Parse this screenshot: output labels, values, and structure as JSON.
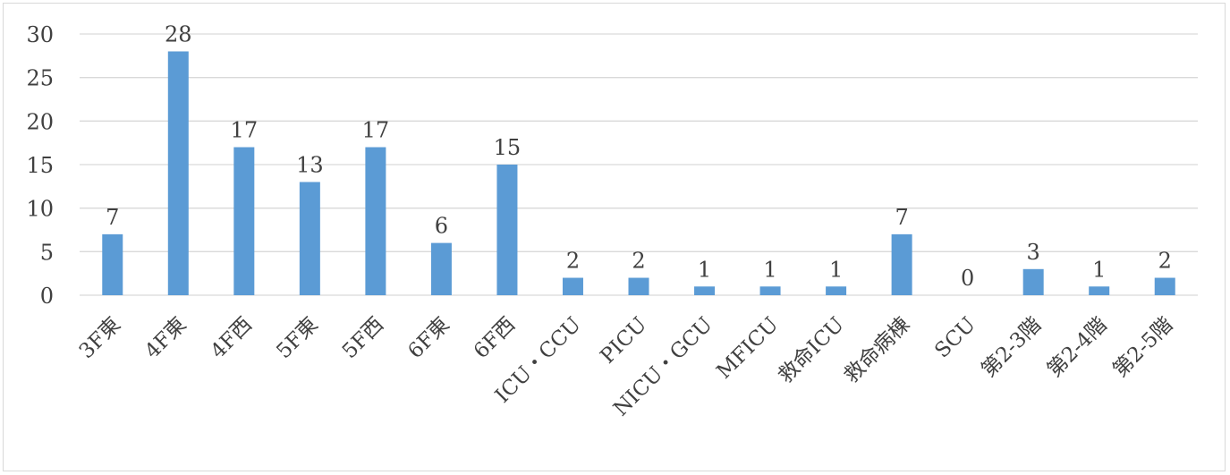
{
  "chart_data": {
    "type": "bar",
    "title": "",
    "xlabel": "",
    "ylabel": "",
    "categories": [
      "3F東",
      "4F東",
      "4F西",
      "5F東",
      "5F西",
      "6F東",
      "6F西",
      "ICU・CCU",
      "PICU",
      "NICU・GCU",
      "MFICU",
      "救命ICU",
      "救命病棟",
      "SCU",
      "第2-3階",
      "第2-4階",
      "第2-5階"
    ],
    "values": [
      7,
      28,
      17,
      13,
      17,
      6,
      15,
      2,
      2,
      1,
      1,
      1,
      7,
      0,
      3,
      1,
      2
    ],
    "ylim": [
      0,
      30
    ],
    "yticks": [
      0,
      5,
      10,
      15,
      20,
      25,
      30
    ],
    "grid": true,
    "data_labels": true,
    "legend": "none",
    "bar_color": "#5b9bd5",
    "grid_color": "#d9d9d9",
    "text_color": "#404040"
  }
}
